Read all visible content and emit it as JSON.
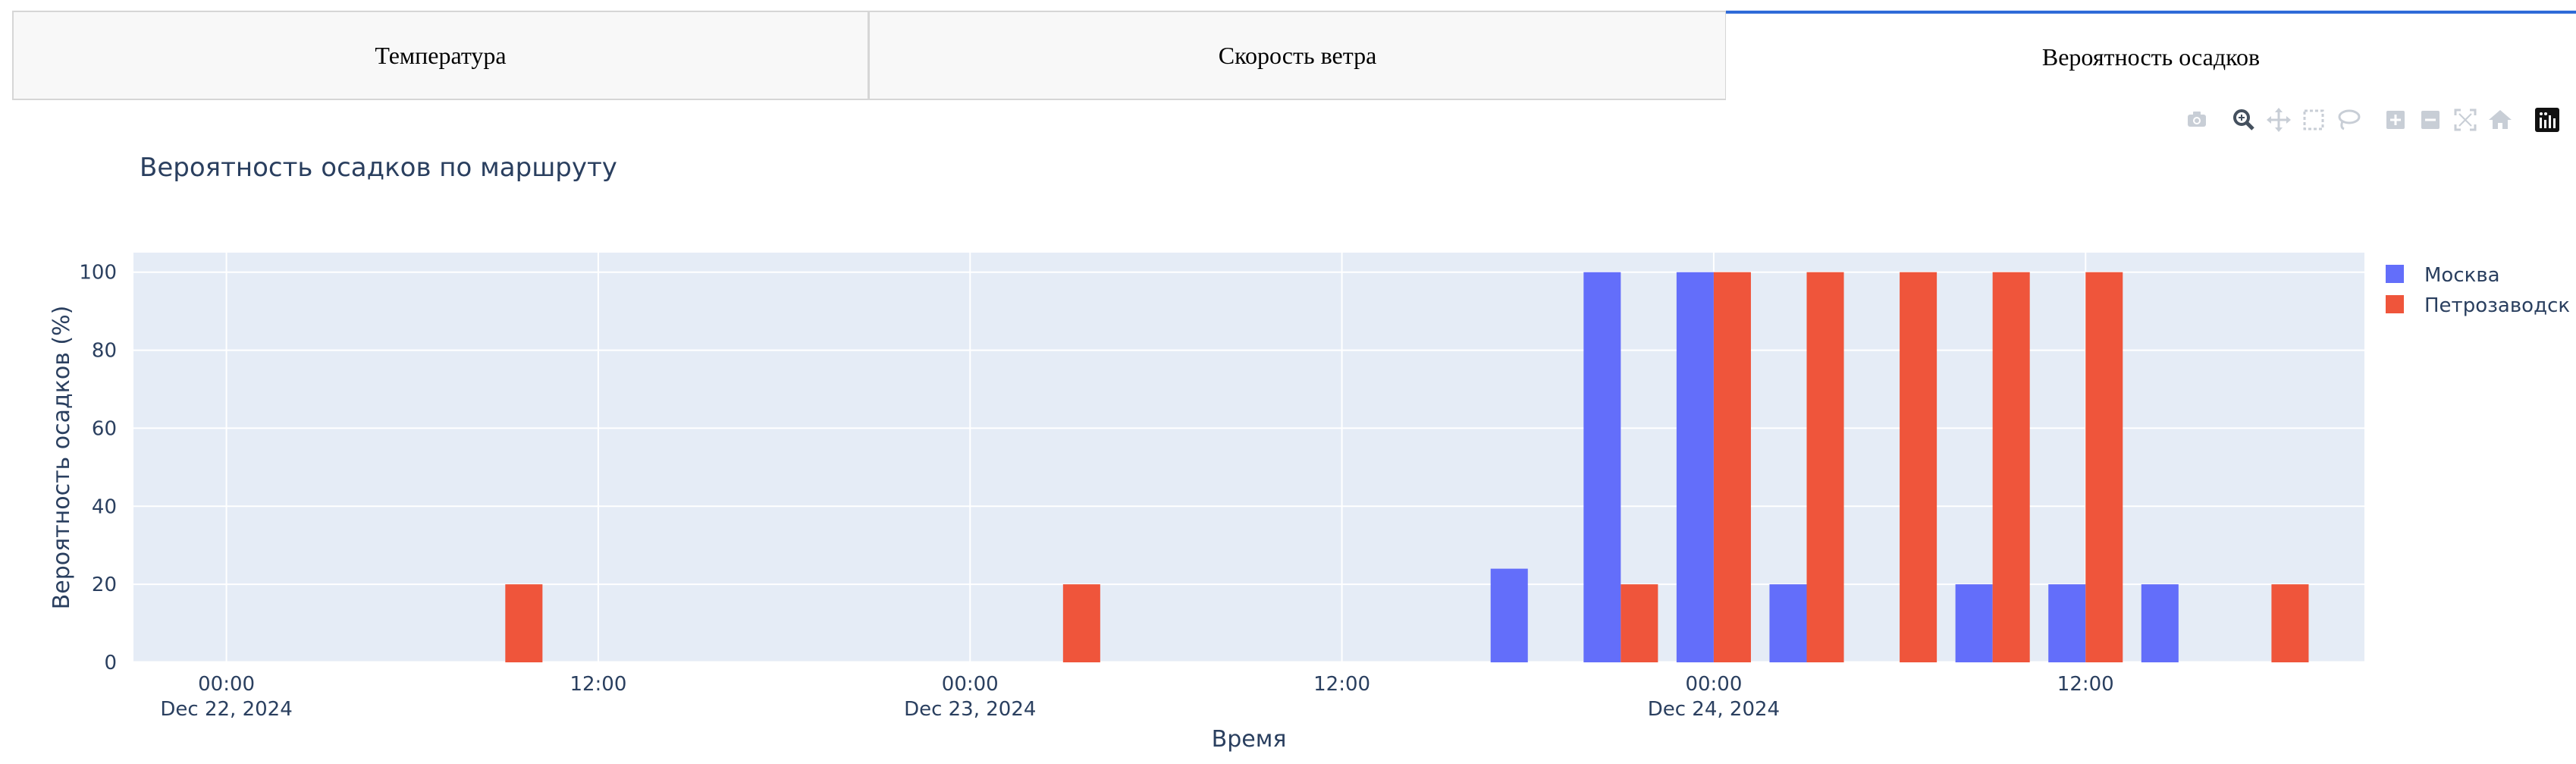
{
  "tabs": [
    {
      "label": "Температура",
      "active": false
    },
    {
      "label": "Скорость ветра",
      "active": false
    },
    {
      "label": "Вероятность осадков",
      "active": true
    }
  ],
  "modebar": [
    "camera-icon",
    "zoom-icon",
    "pan-icon",
    "box-select-icon",
    "lasso-icon",
    "zoom-in-icon",
    "zoom-out-icon",
    "autoscale-icon",
    "reset-axes-icon",
    "plotly-logo-icon"
  ],
  "colors": {
    "moscow": "#636efa",
    "petrozavodsk": "#ef553b",
    "plot_bg": "#e5ecf6",
    "text": "#2a3f5f",
    "active_tab": "#2f6bd8"
  },
  "chart_data": {
    "type": "bar",
    "title": "Вероятность осадков по маршруту",
    "xlabel": "Время",
    "ylabel": "Вероятность осадков (%)",
    "ylim": [
      0,
      105
    ],
    "xlim": [
      "2024-12-21 21:00",
      "2024-12-24 21:00"
    ],
    "y_ticks": [
      0,
      20,
      40,
      60,
      80,
      100
    ],
    "x_ticks": [
      {
        "x": "2024-12-22 00:00",
        "label": "00:00",
        "sublabel": "Dec 22, 2024"
      },
      {
        "x": "2024-12-22 12:00",
        "label": "12:00",
        "sublabel": ""
      },
      {
        "x": "2024-12-23 00:00",
        "label": "00:00",
        "sublabel": "Dec 23, 2024"
      },
      {
        "x": "2024-12-23 12:00",
        "label": "12:00",
        "sublabel": ""
      },
      {
        "x": "2024-12-24 00:00",
        "label": "00:00",
        "sublabel": "Dec 24, 2024"
      },
      {
        "x": "2024-12-24 12:00",
        "label": "12:00",
        "sublabel": ""
      }
    ],
    "barmode": "group",
    "x": [
      "2024-12-22 00:00",
      "2024-12-22 03:00",
      "2024-12-22 06:00",
      "2024-12-22 09:00",
      "2024-12-22 12:00",
      "2024-12-22 15:00",
      "2024-12-22 18:00",
      "2024-12-22 21:00",
      "2024-12-23 00:00",
      "2024-12-23 03:00",
      "2024-12-23 06:00",
      "2024-12-23 09:00",
      "2024-12-23 12:00",
      "2024-12-23 15:00",
      "2024-12-23 18:00",
      "2024-12-23 21:00",
      "2024-12-24 00:00",
      "2024-12-24 03:00",
      "2024-12-24 06:00",
      "2024-12-24 09:00",
      "2024-12-24 12:00",
      "2024-12-24 15:00",
      "2024-12-24 18:00"
    ],
    "series": [
      {
        "name": "Москва",
        "color": "#636efa",
        "values": [
          0,
          0,
          0,
          0,
          0,
          0,
          0,
          0,
          0,
          0,
          0,
          0,
          0,
          0,
          24,
          100,
          100,
          20,
          0,
          20,
          20,
          20,
          0
        ]
      },
      {
        "name": "Петрозаводск",
        "color": "#ef553b",
        "values": [
          0,
          0,
          0,
          20,
          0,
          0,
          0,
          0,
          0,
          20,
          0,
          0,
          0,
          0,
          0,
          20,
          100,
          100,
          100,
          100,
          100,
          0,
          20
        ]
      }
    ],
    "legend_position": "top-right",
    "grid": true
  }
}
